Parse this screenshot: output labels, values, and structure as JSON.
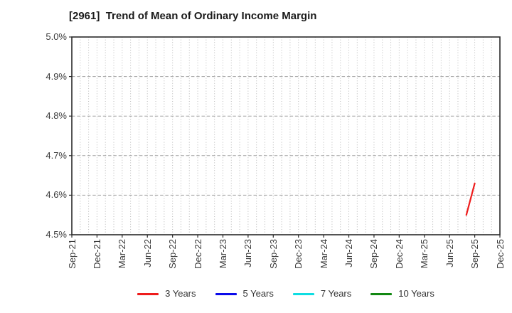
{
  "title": "[2961]  Trend of Mean of Ordinary Income Margin",
  "chart_data": {
    "type": "line",
    "title": "[2961]  Trend of Mean of Ordinary Income Margin",
    "xlabel": "",
    "ylabel": "",
    "ylim": [
      4.5,
      5.0
    ],
    "y_tick_format": "percent",
    "y_ticks": [
      {
        "label": "5.0%",
        "value": 5.0
      },
      {
        "label": "4.9%",
        "value": 4.9
      },
      {
        "label": "4.8%",
        "value": 4.8
      },
      {
        "label": "4.7%",
        "value": 4.7
      },
      {
        "label": "4.6%",
        "value": 4.6
      },
      {
        "label": "4.5%",
        "value": 4.5
      }
    ],
    "x_tick_labels": [
      "Sep-21",
      "Dec-21",
      "Mar-22",
      "Jun-22",
      "Sep-22",
      "Dec-22",
      "Mar-23",
      "Jun-23",
      "Sep-23",
      "Dec-23",
      "Mar-24",
      "Jun-24",
      "Sep-24",
      "Dec-24",
      "Mar-25",
      "Jun-25",
      "Sep-25",
      "Dec-25"
    ],
    "x_months_per_tick": 3,
    "x_total_months": 51,
    "grid": true,
    "grid_style": {
      "vertical": "dotted-monthly",
      "horizontal": "dashed"
    },
    "legend_position": "bottom",
    "series": [
      {
        "name": "3 Years",
        "color": "#ee1c1c",
        "points": [
          {
            "x": "Aug-25",
            "x_index": 47,
            "y": 4.55
          },
          {
            "x": "Sep-25",
            "x_index": 48,
            "y": 4.63
          }
        ]
      },
      {
        "name": "5 Years",
        "color": "#0b0bea",
        "points": []
      },
      {
        "name": "7 Years",
        "color": "#0fdde2",
        "points": []
      },
      {
        "name": "10 Years",
        "color": "#128812",
        "points": []
      }
    ]
  },
  "legend": {
    "items": [
      {
        "label": "3 Years",
        "color": "#ee1c1c"
      },
      {
        "label": "5 Years",
        "color": "#0b0bea"
      },
      {
        "label": "7 Years",
        "color": "#0fdde2"
      },
      {
        "label": "10 Years",
        "color": "#128812"
      }
    ]
  }
}
